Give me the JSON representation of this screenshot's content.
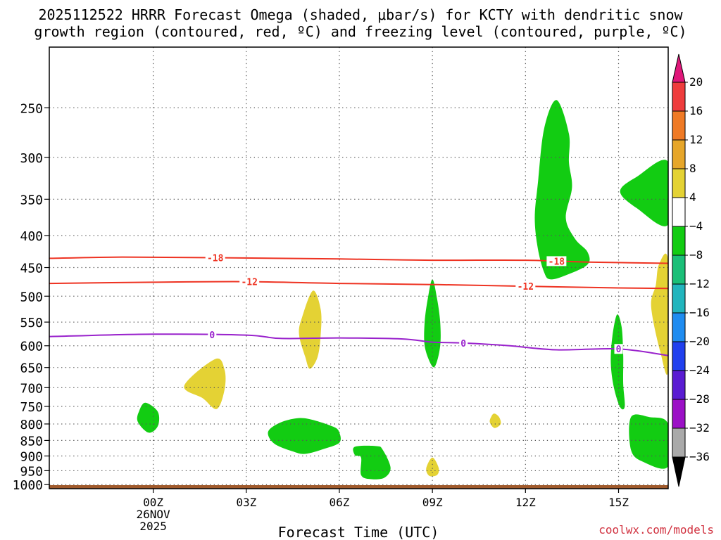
{
  "title": {
    "line1": "2025112522 HRRR Forecast Omega (shaded, μbar/s) for KCTY with dendritic snow",
    "line2": "growth region (contoured, red, ºC) and freezing level (contoured, purple, ºC)"
  },
  "watermark": "coolwx.com/models",
  "chart_data": {
    "type": "time-height",
    "xlabel": "Forecast Time (UTC)",
    "x_unit": "hours since 2025-11-26 00Z",
    "xlim": [
      -3.35,
      16.6
    ],
    "x_ticks": [
      {
        "value": 0,
        "label": "00Z",
        "sub1": "26NOV",
        "sub2": "2025"
      },
      {
        "value": 3,
        "label": "03Z"
      },
      {
        "value": 6,
        "label": "06Z"
      },
      {
        "value": 9,
        "label": "09Z"
      },
      {
        "value": 12,
        "label": "12Z"
      },
      {
        "value": 15,
        "label": "15Z"
      }
    ],
    "y_ticks": [
      250,
      300,
      350,
      400,
      450,
      500,
      550,
      600,
      650,
      700,
      750,
      800,
      850,
      900,
      950,
      1000
    ],
    "ylim_hPa": [
      200,
      1015
    ],
    "surface_hPa": 1002,
    "colors": {
      "frame": "#000000",
      "grid": "#555555",
      "surface": "#a05a2c",
      "dgz": "#ee3322",
      "freezing": "#9922cc"
    },
    "colorbar": {
      "unit": "μbar/s",
      "levels": [
        20,
        16,
        12,
        8,
        4,
        -4,
        -8,
        -12,
        -16,
        -20,
        -24,
        -28,
        -32,
        -36
      ],
      "bins": [
        {
          "color": "#ef3d3d",
          "range": [
            16,
            20
          ]
        },
        {
          "color": "#ef7a25",
          "range": [
            12,
            16
          ]
        },
        {
          "color": "#e6a62a",
          "range": [
            8,
            12
          ]
        },
        {
          "color": "#e4d234",
          "range": [
            4,
            8
          ]
        },
        {
          "color": "#ffffff",
          "range": [
            -4,
            4
          ]
        },
        {
          "color": "#12cc12",
          "range": [
            -8,
            -4
          ]
        },
        {
          "color": "#1bbf78",
          "range": [
            -12,
            -8
          ]
        },
        {
          "color": "#22b5bd",
          "range": [
            -16,
            -12
          ]
        },
        {
          "color": "#1f8cf0",
          "range": [
            -20,
            -16
          ]
        },
        {
          "color": "#2140ee",
          "range": [
            -24,
            -20
          ]
        },
        {
          "color": "#5a1cd2",
          "range": [
            -28,
            -24
          ]
        },
        {
          "color": "#9b10c6",
          "range": [
            -32,
            -28
          ]
        },
        {
          "color": "#a9a9a9",
          "range": [
            -36,
            -32
          ]
        }
      ],
      "top_arrow_color": "#e0177a",
      "bottom_arrow_color": "#000000"
    },
    "contours": [
      {
        "name": "dgz-minus18",
        "label": "-18",
        "color": "#ee3322",
        "unit": "ºC",
        "points": [
          [
            -3.35,
            435
          ],
          [
            -1,
            433
          ],
          [
            2,
            434
          ],
          [
            6,
            436
          ],
          [
            9,
            438
          ],
          [
            12,
            438
          ],
          [
            14,
            441
          ],
          [
            16.6,
            443
          ]
        ],
        "label_positions": [
          [
            2.0,
            434
          ],
          [
            13.0,
            438
          ]
        ]
      },
      {
        "name": "dgz-minus12",
        "label": "-12",
        "color": "#ee3322",
        "unit": "ºC",
        "points": [
          [
            -3.35,
            477
          ],
          [
            0,
            475
          ],
          [
            3,
            474
          ],
          [
            6,
            477
          ],
          [
            9,
            479
          ],
          [
            12,
            482
          ],
          [
            15,
            485
          ],
          [
            16.6,
            486
          ]
        ],
        "label_positions": [
          [
            3.1,
            474
          ],
          [
            12.0,
            482
          ]
        ]
      },
      {
        "name": "freezing-level",
        "label": "0",
        "color": "#9922cc",
        "unit": "ºC",
        "points": [
          [
            -3.35,
            580
          ],
          [
            0,
            575
          ],
          [
            3,
            577
          ],
          [
            4.1,
            584
          ],
          [
            6,
            583
          ],
          [
            8,
            585
          ],
          [
            9,
            592
          ],
          [
            10,
            594
          ],
          [
            11.5,
            600
          ],
          [
            13,
            609
          ],
          [
            15,
            607
          ],
          [
            16.6,
            622
          ]
        ],
        "label_positions": [
          [
            1.9,
            577
          ],
          [
            10.0,
            594
          ],
          [
            15.0,
            607
          ]
        ]
      }
    ],
    "omega_regions": [
      {
        "id": "g1",
        "color": "#12cc12",
        "value_range": [
          -8,
          -4
        ],
        "polygon": [
          [
            13.0,
            243
          ],
          [
            12.6,
            270
          ],
          [
            12.4,
            330
          ],
          [
            12.3,
            375
          ],
          [
            12.4,
            420
          ],
          [
            12.6,
            458
          ],
          [
            12.8,
            470
          ],
          [
            13.3,
            463
          ],
          [
            14.0,
            445
          ],
          [
            14.0,
            425
          ],
          [
            13.6,
            405
          ],
          [
            13.3,
            375
          ],
          [
            13.5,
            335
          ],
          [
            13.4,
            305
          ],
          [
            13.4,
            275
          ]
        ]
      },
      {
        "id": "g2",
        "color": "#12cc12",
        "value_range": [
          -8,
          -4
        ],
        "polygon": [
          [
            15.05,
            340
          ],
          [
            15.6,
            322
          ],
          [
            16.6,
            305
          ],
          [
            16.6,
            384
          ],
          [
            15.6,
            362
          ]
        ]
      },
      {
        "id": "g3",
        "color": "#12cc12",
        "value_range": [
          -8,
          -4
        ],
        "polygon": [
          [
            9.0,
            470
          ],
          [
            8.85,
            505
          ],
          [
            8.75,
            550
          ],
          [
            8.75,
            600
          ],
          [
            8.95,
            642
          ],
          [
            9.1,
            645
          ],
          [
            9.25,
            600
          ],
          [
            9.25,
            550
          ],
          [
            9.15,
            505
          ]
        ]
      },
      {
        "id": "g4",
        "color": "#12cc12",
        "value_range": [
          -8,
          -4
        ],
        "polygon": [
          [
            14.95,
            535
          ],
          [
            14.8,
            580
          ],
          [
            14.75,
            640
          ],
          [
            14.85,
            700
          ],
          [
            15.05,
            752
          ],
          [
            15.2,
            750
          ],
          [
            15.15,
            690
          ],
          [
            15.15,
            620
          ],
          [
            15.1,
            560
          ]
        ]
      },
      {
        "id": "g5",
        "color": "#12cc12",
        "value_range": [
          -8,
          -4
        ],
        "polygon": [
          [
            -0.25,
            740
          ],
          [
            -0.45,
            762
          ],
          [
            -0.5,
            793
          ],
          [
            -0.15,
            826
          ],
          [
            0.15,
            806
          ],
          [
            0.15,
            765
          ]
        ]
      },
      {
        "id": "g6",
        "color": "#12cc12",
        "value_range": [
          -8,
          -4
        ],
        "polygon": [
          [
            3.7,
            825
          ],
          [
            4.0,
            800
          ],
          [
            4.5,
            785
          ],
          [
            5.0,
            785
          ],
          [
            5.8,
            808
          ],
          [
            6.0,
            826
          ],
          [
            6.0,
            857
          ],
          [
            5.5,
            877
          ],
          [
            4.9,
            893
          ],
          [
            4.5,
            885
          ],
          [
            3.9,
            860
          ]
        ]
      },
      {
        "id": "g7",
        "color": "#12cc12",
        "value_range": [
          -8,
          -4
        ],
        "polygon": [
          [
            6.5,
            870
          ],
          [
            7.2,
            868
          ],
          [
            7.4,
            880
          ],
          [
            7.65,
            940
          ],
          [
            7.45,
            975
          ],
          [
            7.0,
            980
          ],
          [
            6.7,
            965
          ],
          [
            6.7,
            905
          ],
          [
            6.5,
            897
          ]
        ]
      },
      {
        "id": "g8",
        "color": "#12cc12",
        "value_range": [
          -8,
          -4
        ],
        "polygon": [
          [
            15.4,
            780
          ],
          [
            16.0,
            780
          ],
          [
            16.6,
            800
          ],
          [
            16.6,
            935
          ],
          [
            15.8,
            920
          ],
          [
            15.4,
            880
          ]
        ]
      },
      {
        "id": "y1",
        "color": "#e4d234",
        "value_range": [
          4,
          8
        ],
        "polygon": [
          [
            5.15,
            490
          ],
          [
            4.8,
            540
          ],
          [
            4.7,
            575
          ],
          [
            4.9,
            625
          ],
          [
            5.05,
            653
          ],
          [
            5.3,
            625
          ],
          [
            5.4,
            575
          ],
          [
            5.4,
            525
          ]
        ]
      },
      {
        "id": "y2",
        "color": "#e4d234",
        "value_range": [
          4,
          8
        ],
        "polygon": [
          [
            1.0,
            695
          ],
          [
            2.0,
            630
          ],
          [
            2.3,
            655
          ],
          [
            2.3,
            705
          ],
          [
            2.05,
            757
          ],
          [
            1.6,
            728
          ]
        ]
      },
      {
        "id": "y3",
        "color": "#e4d234",
        "value_range": [
          4,
          8
        ],
        "polygon": [
          [
            11.0,
            770
          ],
          [
            11.15,
            780
          ],
          [
            11.2,
            800
          ],
          [
            11.0,
            812
          ],
          [
            10.85,
            795
          ],
          [
            10.9,
            778
          ]
        ]
      },
      {
        "id": "y4",
        "color": "#e4d234",
        "value_range": [
          4,
          8
        ],
        "polygon": [
          [
            9.0,
            905
          ],
          [
            9.2,
            940
          ],
          [
            9.15,
            965
          ],
          [
            8.9,
            968
          ],
          [
            8.8,
            942
          ]
        ]
      },
      {
        "id": "y5",
        "color": "#e4d234",
        "value_range": [
          4,
          8
        ],
        "polygon": [
          [
            16.3,
            445
          ],
          [
            16.6,
            440
          ],
          [
            16.6,
            655
          ],
          [
            16.35,
            615
          ],
          [
            16.05,
            520
          ],
          [
            16.2,
            480
          ]
        ]
      }
    ]
  }
}
